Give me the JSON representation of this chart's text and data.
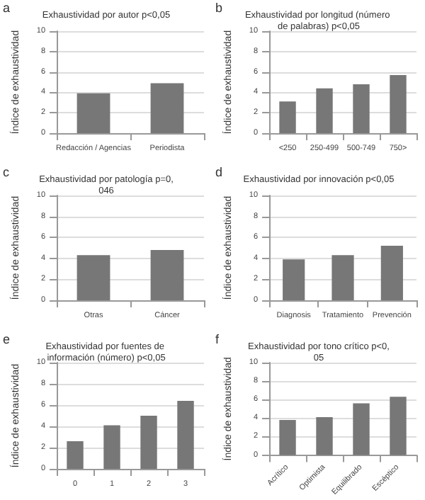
{
  "chart_data": [
    {
      "type": "bar",
      "title": "Exhaustividad por autor p<0,05",
      "annotations": [
        "a"
      ],
      "ylabel": "Índice de exhaustividad",
      "categories": [
        "Redacción / Agencias",
        "Periodista"
      ],
      "values": [
        3.9,
        4.9
      ],
      "color": "#777777",
      "ylim": [
        0,
        10
      ],
      "yticks": [
        0,
        2,
        4,
        6,
        8,
        10
      ],
      "grid": "y"
    },
    {
      "type": "bar",
      "title": "Exhaustividad por longitud (número de palabras) p<0,05",
      "annotations": [
        "b"
      ],
      "ylabel": "Índice de exhaustividad",
      "categories": [
        "<250",
        "250-499",
        "500-749",
        "750>"
      ],
      "values": [
        3.1,
        4.4,
        4.8,
        5.7
      ],
      "color": "#777777",
      "ylim": [
        0,
        10
      ],
      "yticks": [
        0,
        2,
        4,
        6,
        8,
        10
      ],
      "grid": "y"
    },
    {
      "type": "bar",
      "title": "Exhaustividad por patología p=0,046",
      "annotations": [
        "c"
      ],
      "ylabel": "Índice de exhaustividad",
      "categories": [
        "Otras",
        "Cáncer"
      ],
      "values": [
        4.3,
        4.8
      ],
      "color": "#777777",
      "ylim": [
        0,
        10
      ],
      "yticks": [
        0,
        2,
        4,
        6,
        8,
        10
      ],
      "grid": "y"
    },
    {
      "type": "bar",
      "title": "Exhaustividad por innovación p<0,05",
      "annotations": [
        "d"
      ],
      "ylabel": "Índice de exhaustividad",
      "categories": [
        "Diagnosis",
        "Tratamiento",
        "Prevención"
      ],
      "values": [
        3.9,
        4.3,
        5.2
      ],
      "color": "#777777",
      "ylim": [
        0,
        10
      ],
      "yticks": [
        0,
        2,
        4,
        6,
        8,
        10
      ],
      "grid": "y"
    },
    {
      "type": "bar",
      "title": "Exhaustividad por fuentes de información (número) p<0,05",
      "annotations": [
        "e"
      ],
      "ylabel": "Índice de exhaustividad",
      "categories": [
        "0",
        "1",
        "2",
        "3"
      ],
      "values": [
        2.6,
        4.1,
        5.0,
        6.4
      ],
      "color": "#777777",
      "ylim": [
        0,
        10
      ],
      "yticks": [
        0,
        2,
        4,
        6,
        8,
        10
      ],
      "grid": "y"
    },
    {
      "type": "bar",
      "title": "Exhaustividad por tono crítico p<0,05",
      "annotations": [
        "f"
      ],
      "ylabel": "Índice de exhaustividad",
      "categories": [
        "Acrítico",
        "Optimista",
        "Equilibrado",
        "Escéptico"
      ],
      "values": [
        3.8,
        4.1,
        5.6,
        6.3
      ],
      "color": "#777777",
      "ylim": [
        0,
        10
      ],
      "yticks": [
        0,
        2,
        4,
        6,
        8,
        10
      ],
      "grid": "y"
    }
  ]
}
